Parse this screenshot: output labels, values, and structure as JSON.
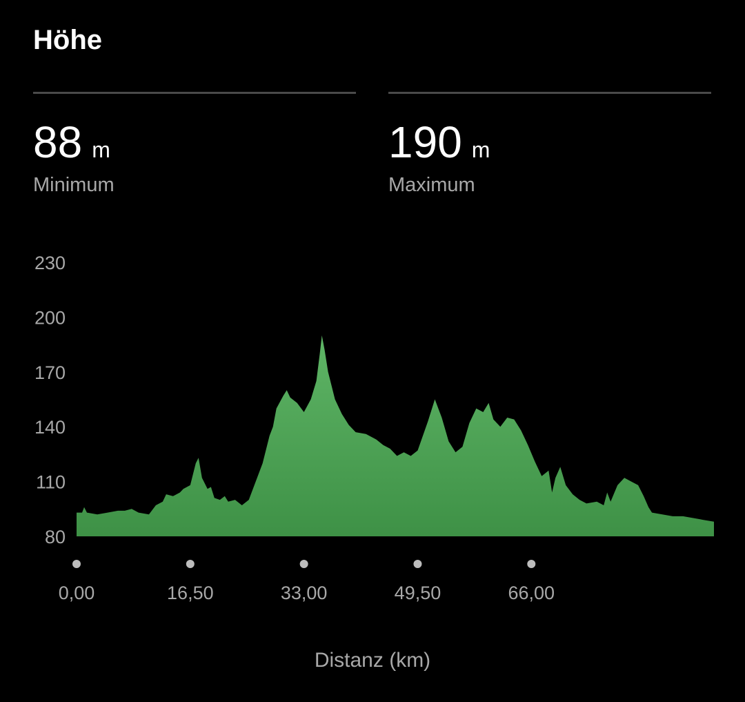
{
  "header": {
    "title": "Höhe"
  },
  "stats": {
    "min": {
      "value": "88",
      "unit": "m",
      "label": "Minimum"
    },
    "max": {
      "value": "190",
      "unit": "m",
      "label": "Maximum"
    }
  },
  "colors": {
    "background": "#000000",
    "fill_top": "#5fb566",
    "fill_bottom": "#3e9146",
    "text_secondary": "#a8a8a8",
    "tick_dot": "#bdbdbd",
    "divider": "#4a4a4a"
  },
  "chart_data": {
    "type": "area",
    "xlabel": "Distanz (km)",
    "xlim": [
      0,
      83
    ],
    "ylim": [
      80,
      230
    ],
    "y_ticks": [
      230,
      200,
      170,
      140,
      110,
      80
    ],
    "x_ticks": [
      0,
      16.5,
      33,
      49.5,
      66
    ],
    "x_tick_labels": [
      "0,00",
      "16,50",
      "33,00",
      "49,50",
      "66,00"
    ],
    "grid": false,
    "legend": "none",
    "series": [
      {
        "values": [
          [
            0,
            93
          ],
          [
            0.8,
            93
          ],
          [
            1.1,
            96
          ],
          [
            1.5,
            93
          ],
          [
            3,
            92
          ],
          [
            4.5,
            93
          ],
          [
            6,
            94
          ],
          [
            7,
            94
          ],
          [
            8,
            95
          ],
          [
            9,
            93
          ],
          [
            10.5,
            92
          ],
          [
            11.5,
            97
          ],
          [
            12.5,
            99
          ],
          [
            13,
            103
          ],
          [
            14,
            102
          ],
          [
            15,
            104
          ],
          [
            15.5,
            106
          ],
          [
            16.5,
            108
          ],
          [
            17.3,
            120
          ],
          [
            17.7,
            123
          ],
          [
            18.2,
            112
          ],
          [
            19,
            106
          ],
          [
            19.5,
            107
          ],
          [
            20,
            101
          ],
          [
            20.8,
            100
          ],
          [
            21.5,
            102
          ],
          [
            22,
            99
          ],
          [
            23,
            100
          ],
          [
            24,
            97
          ],
          [
            25,
            100
          ],
          [
            26,
            110
          ],
          [
            27,
            120
          ],
          [
            28,
            135
          ],
          [
            28.5,
            140
          ],
          [
            29,
            150
          ],
          [
            30,
            157
          ],
          [
            30.5,
            160
          ],
          [
            31,
            156
          ],
          [
            32,
            153
          ],
          [
            33,
            148
          ],
          [
            34,
            155
          ],
          [
            34.8,
            165
          ],
          [
            35.3,
            180
          ],
          [
            35.6,
            190
          ],
          [
            36,
            182
          ],
          [
            36.5,
            170
          ],
          [
            37.5,
            155
          ],
          [
            38.5,
            147
          ],
          [
            39.5,
            141
          ],
          [
            40.5,
            137
          ],
          [
            42,
            136
          ],
          [
            43.5,
            133
          ],
          [
            44.5,
            130
          ],
          [
            45.5,
            128
          ],
          [
            46.5,
            124
          ],
          [
            47.5,
            126
          ],
          [
            48.5,
            124
          ],
          [
            49.5,
            127
          ],
          [
            51,
            143
          ],
          [
            52,
            155
          ],
          [
            53,
            145
          ],
          [
            54,
            132
          ],
          [
            55,
            126
          ],
          [
            56,
            129
          ],
          [
            57,
            142
          ],
          [
            58,
            150
          ],
          [
            59,
            148
          ],
          [
            59.8,
            153
          ],
          [
            60.5,
            144
          ],
          [
            61.5,
            140
          ],
          [
            62.5,
            145
          ],
          [
            63.5,
            144
          ],
          [
            64.5,
            138
          ],
          [
            65.5,
            130
          ],
          [
            66.5,
            121
          ],
          [
            67.5,
            113
          ],
          [
            68.5,
            116
          ],
          [
            69,
            104
          ],
          [
            69.5,
            112
          ],
          [
            70.2,
            118
          ],
          [
            71,
            108
          ],
          [
            72,
            103
          ],
          [
            73,
            100
          ],
          [
            74,
            98
          ],
          [
            75.5,
            99
          ],
          [
            76.5,
            97
          ],
          [
            77,
            104
          ],
          [
            77.5,
            99
          ],
          [
            78.5,
            108
          ],
          [
            79.5,
            112
          ],
          [
            80.5,
            110
          ],
          [
            81.5,
            108
          ],
          [
            82.3,
            102
          ],
          [
            83,
            96
          ],
          [
            83.5,
            93
          ],
          [
            85,
            92
          ],
          [
            86.5,
            91
          ],
          [
            88,
            91
          ],
          [
            89.5,
            90
          ],
          [
            91,
            89
          ],
          [
            92.5,
            88
          ]
        ]
      }
    ]
  }
}
